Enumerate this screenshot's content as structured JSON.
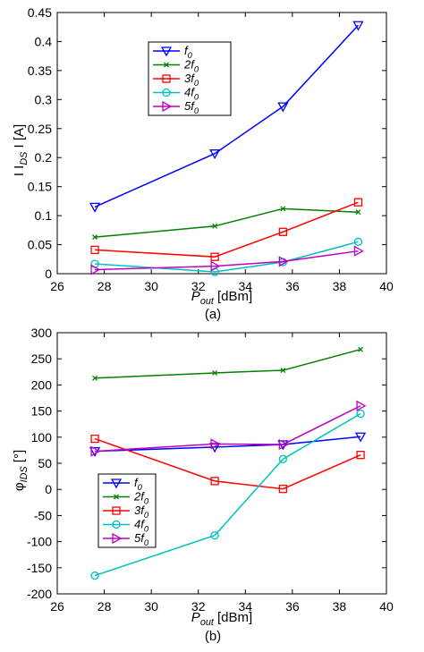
{
  "chart_data": [
    {
      "type": "line",
      "caption": "(a)",
      "xlabel": {
        "main": "P",
        "sub": "out",
        "unit": " [dBm]"
      },
      "ylabel": {
        "pre": "I I",
        "sub": "DS",
        "post": " I   [A]"
      },
      "xlim": [
        26,
        40
      ],
      "ylim": [
        0,
        0.45
      ],
      "xticks": [
        26,
        28,
        30,
        32,
        34,
        36,
        38,
        40
      ],
      "yticks": [
        0,
        0.05,
        0.1,
        0.15,
        0.2,
        0.25,
        0.3,
        0.35,
        0.4,
        0.45
      ],
      "ytick_labels": [
        "0",
        "0.05",
        "0.1",
        "0.15",
        "0.2",
        "0.25",
        "0.3",
        "0.35",
        "0.4",
        "0.45"
      ],
      "legend_position": "upper-left",
      "x": [
        27.6,
        32.7,
        35.6,
        38.8
      ],
      "series": [
        {
          "name": "f",
          "sub": "0",
          "color": "#0000ff",
          "marker": "triangle-down",
          "values": [
            0.115,
            0.207,
            0.288,
            0.428
          ]
        },
        {
          "name": "2f",
          "sub": "0",
          "color": "#008000",
          "marker": "x",
          "values": [
            0.063,
            0.082,
            0.112,
            0.106
          ]
        },
        {
          "name": "3f",
          "sub": "0",
          "color": "#ff0000",
          "marker": "square",
          "values": [
            0.041,
            0.029,
            0.072,
            0.123
          ]
        },
        {
          "name": "4f",
          "sub": "0",
          "color": "#00bfbf",
          "marker": "circle",
          "values": [
            0.017,
            0.003,
            0.02,
            0.055
          ]
        },
        {
          "name": "5f",
          "sub": "0",
          "color": "#bf00bf",
          "marker": "triangle-right",
          "values": [
            0.007,
            0.013,
            0.021,
            0.039
          ]
        }
      ]
    },
    {
      "type": "line",
      "caption": "(b)",
      "xlabel": {
        "main": "P",
        "sub": "out",
        "unit": " [dBm]"
      },
      "ylabel": {
        "pre": "φ",
        "sub": "IDS",
        "post": "  [°]"
      },
      "xlim": [
        26,
        40
      ],
      "ylim": [
        -200,
        300
      ],
      "xticks": [
        26,
        28,
        30,
        32,
        34,
        36,
        38,
        40
      ],
      "yticks": [
        -200,
        -150,
        -100,
        -50,
        0,
        50,
        100,
        150,
        200,
        250,
        300
      ],
      "ytick_labels": [
        "-200",
        "-150",
        "-100",
        "-50",
        "0",
        "50",
        "100",
        "150",
        "200",
        "250",
        "300"
      ],
      "legend_position": "lower-left",
      "x": [
        27.6,
        32.7,
        35.6,
        38.9
      ],
      "series": [
        {
          "name": "f",
          "sub": "0",
          "color": "#0000ff",
          "marker": "triangle-down",
          "values": [
            73,
            81,
            86,
            101
          ]
        },
        {
          "name": "2f",
          "sub": "0",
          "color": "#008000",
          "marker": "x",
          "values": [
            213,
            223,
            228,
            268
          ]
        },
        {
          "name": "3f",
          "sub": "0",
          "color": "#ff0000",
          "marker": "square",
          "values": [
            97,
            16,
            1,
            66
          ]
        },
        {
          "name": "4f",
          "sub": "0",
          "color": "#00bfbf",
          "marker": "circle",
          "values": [
            -165,
            -88,
            58,
            145
          ]
        },
        {
          "name": "5f",
          "sub": "0",
          "color": "#bf00bf",
          "marker": "triangle-right",
          "values": [
            73,
            87,
            86,
            160
          ]
        }
      ]
    }
  ]
}
